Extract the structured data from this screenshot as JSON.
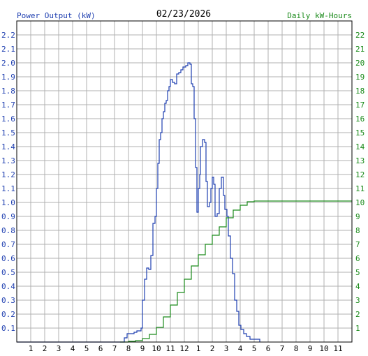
{
  "chart_data": {
    "type": "line",
    "date": "02/23/2026",
    "left_axis_label": "Power Output (kW)",
    "right_axis_label": "Daily kW-Hours",
    "grid": true,
    "x_ticks": [
      "1",
      "2",
      "3",
      "4",
      "5",
      "6",
      "7",
      "8",
      "9",
      "10",
      "11",
      "12",
      "1",
      "2",
      "3",
      "4",
      "5",
      "6",
      "7",
      "8",
      "9",
      "10",
      "11"
    ],
    "left_ticks": [
      "0.1",
      "0.2",
      "0.3",
      "0.4",
      "0.5",
      "0.6",
      "0.7",
      "0.8",
      "0.9",
      "1.0",
      "1.1",
      "1.2",
      "1.3",
      "1.4",
      "1.5",
      "1.6",
      "1.7",
      "1.8",
      "1.9",
      "2.0",
      "2.1",
      "2.2"
    ],
    "right_ticks": [
      "1",
      "2",
      "3",
      "4",
      "5",
      "6",
      "7",
      "8",
      "9",
      "10",
      "11",
      "12",
      "13",
      "14",
      "15",
      "16",
      "17",
      "18",
      "19",
      "20",
      "21",
      "22"
    ],
    "ylim_left": [
      0,
      2.3
    ],
    "ylim_right": [
      0,
      23
    ],
    "xlim_hours": [
      0,
      24
    ],
    "colors": {
      "power": "#1f3fb0",
      "energy": "#1a8a1a",
      "grid": "#b0b0b0",
      "frame": "#000000"
    },
    "series": [
      {
        "name": "Power Output (kW)",
        "axis": "left",
        "color": "#1f3fb0",
        "step": true,
        "points": [
          [
            0,
            0
          ],
          [
            7.4,
            0
          ],
          [
            7.7,
            0.03
          ],
          [
            7.9,
            0.06
          ],
          [
            8.2,
            0.06
          ],
          [
            8.4,
            0.07
          ],
          [
            8.6,
            0.08
          ],
          [
            8.9,
            0.1
          ],
          [
            9.0,
            0.3
          ],
          [
            9.15,
            0.45
          ],
          [
            9.3,
            0.53
          ],
          [
            9.45,
            0.52
          ],
          [
            9.6,
            0.62
          ],
          [
            9.75,
            0.85
          ],
          [
            9.9,
            0.9
          ],
          [
            10.0,
            1.1
          ],
          [
            10.1,
            1.28
          ],
          [
            10.2,
            1.45
          ],
          [
            10.3,
            1.5
          ],
          [
            10.4,
            1.6
          ],
          [
            10.5,
            1.65
          ],
          [
            10.6,
            1.71
          ],
          [
            10.7,
            1.73
          ],
          [
            10.8,
            1.8
          ],
          [
            10.9,
            1.83
          ],
          [
            11.0,
            1.88
          ],
          [
            11.15,
            1.86
          ],
          [
            11.3,
            1.85
          ],
          [
            11.45,
            1.92
          ],
          [
            11.6,
            1.93
          ],
          [
            11.75,
            1.95
          ],
          [
            11.9,
            1.97
          ],
          [
            12.0,
            1.97
          ],
          [
            12.1,
            1.98
          ],
          [
            12.25,
            2.0
          ],
          [
            12.4,
            1.99
          ],
          [
            12.5,
            1.85
          ],
          [
            12.6,
            1.83
          ],
          [
            12.7,
            1.6
          ],
          [
            12.8,
            1.25
          ],
          [
            12.9,
            0.93
          ],
          [
            13.0,
            1.1
          ],
          [
            13.1,
            1.2
          ],
          [
            13.15,
            1.4
          ],
          [
            13.3,
            1.45
          ],
          [
            13.45,
            1.43
          ],
          [
            13.55,
            1.15
          ],
          [
            13.65,
            0.97
          ],
          [
            13.8,
            1.0
          ],
          [
            13.9,
            1.1
          ],
          [
            14.0,
            1.18
          ],
          [
            14.1,
            1.13
          ],
          [
            14.2,
            0.9
          ],
          [
            14.35,
            0.92
          ],
          [
            14.5,
            1.1
          ],
          [
            14.65,
            1.18
          ],
          [
            14.8,
            1.05
          ],
          [
            14.9,
            0.95
          ],
          [
            15.05,
            0.9
          ],
          [
            15.15,
            0.76
          ],
          [
            15.3,
            0.6
          ],
          [
            15.45,
            0.49
          ],
          [
            15.6,
            0.3
          ],
          [
            15.75,
            0.22
          ],
          [
            15.9,
            0.12
          ],
          [
            16.05,
            0.09
          ],
          [
            16.25,
            0.06
          ],
          [
            16.45,
            0.04
          ],
          [
            16.7,
            0.02
          ],
          [
            17.2,
            0.02
          ],
          [
            17.4,
            0
          ]
        ]
      },
      {
        "name": "Daily kW-Hours",
        "axis": "right",
        "color": "#1a8a1a",
        "step": true,
        "points": [
          [
            7.4,
            0
          ],
          [
            8.0,
            0.05
          ],
          [
            8.5,
            0.1
          ],
          [
            9.0,
            0.25
          ],
          [
            9.5,
            0.55
          ],
          [
            10.0,
            1.05
          ],
          [
            10.5,
            1.8
          ],
          [
            11.0,
            2.65
          ],
          [
            11.5,
            3.55
          ],
          [
            12.0,
            4.5
          ],
          [
            12.5,
            5.45
          ],
          [
            13.0,
            6.25
          ],
          [
            13.5,
            7.0
          ],
          [
            14.0,
            7.65
          ],
          [
            14.5,
            8.25
          ],
          [
            15.0,
            8.9
          ],
          [
            15.5,
            9.45
          ],
          [
            16.0,
            9.8
          ],
          [
            16.5,
            10.05
          ],
          [
            17.0,
            10.1
          ],
          [
            24,
            10.1
          ]
        ]
      }
    ]
  }
}
